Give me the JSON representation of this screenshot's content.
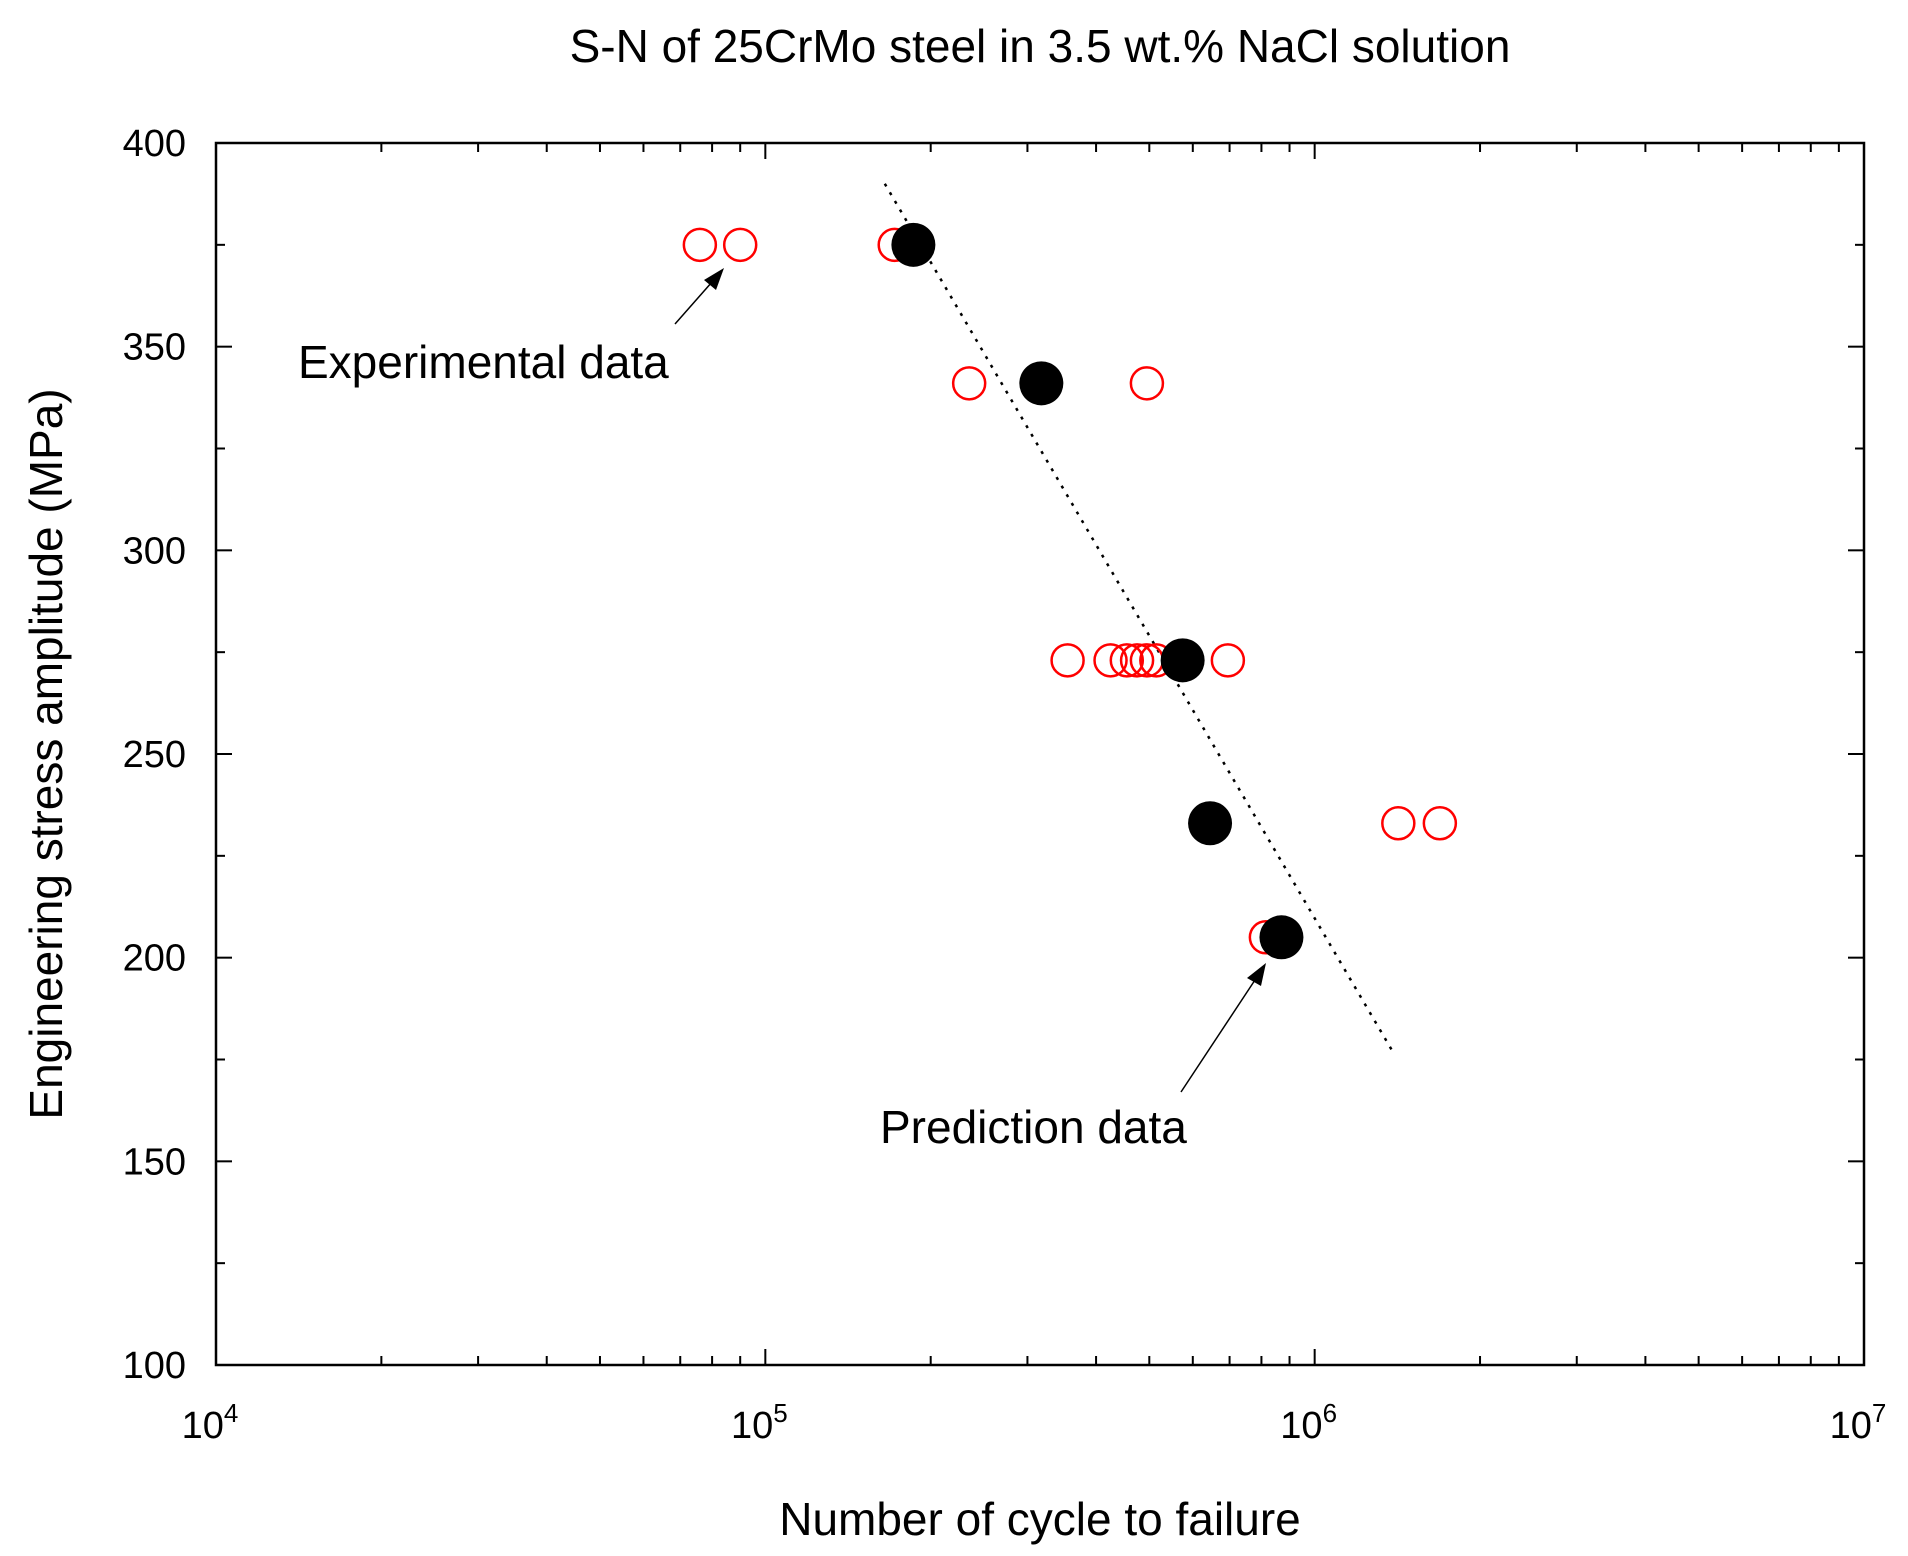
{
  "chart_data": {
    "type": "scatter",
    "title": "S-N of 25CrMo steel in 3.5 wt.% NaCl solution",
    "xlabel": "Number of cycle to failure",
    "ylabel": "Engineering stress amplitude (MPa)",
    "xscale": "log",
    "xlim": [
      10000,
      10000000
    ],
    "ylim": [
      100,
      400
    ],
    "x_ticks": [
      {
        "value": 10000,
        "base": "10",
        "exp": "4"
      },
      {
        "value": 100000,
        "base": "10",
        "exp": "5"
      },
      {
        "value": 1000000,
        "base": "10",
        "exp": "6"
      },
      {
        "value": 10000000,
        "base": "10",
        "exp": "7"
      }
    ],
    "y_ticks": [
      100,
      150,
      200,
      250,
      300,
      350,
      400
    ],
    "series": [
      {
        "name": "Experimental data",
        "marker": "open-circle",
        "color": "#ff0000",
        "points": [
          [
            76000,
            375
          ],
          [
            90000,
            375
          ],
          [
            172000,
            375
          ],
          [
            235000,
            341
          ],
          [
            495000,
            341
          ],
          [
            355000,
            273
          ],
          [
            425000,
            273
          ],
          [
            455000,
            273
          ],
          [
            475000,
            273
          ],
          [
            495000,
            273
          ],
          [
            515000,
            273
          ],
          [
            695000,
            273
          ],
          [
            815000,
            205
          ],
          [
            1420000,
            233
          ],
          [
            1690000,
            233
          ]
        ]
      },
      {
        "name": "Prediction data",
        "marker": "filled-circle",
        "color": "#000000",
        "points": [
          [
            186000,
            375
          ],
          [
            318000,
            341
          ],
          [
            575000,
            273
          ],
          [
            645000,
            233
          ],
          [
            870000,
            205
          ]
        ]
      },
      {
        "name": "fit",
        "style": "dotted-line",
        "color": "#000000",
        "points": [
          [
            165000,
            390
          ],
          [
            1400000,
            176
          ]
        ]
      }
    ],
    "annotations": [
      {
        "text": "Experimental data",
        "target": [
          88000,
          375
        ]
      },
      {
        "text": "Prediction data",
        "target": [
          860000,
          205
        ]
      }
    ]
  }
}
